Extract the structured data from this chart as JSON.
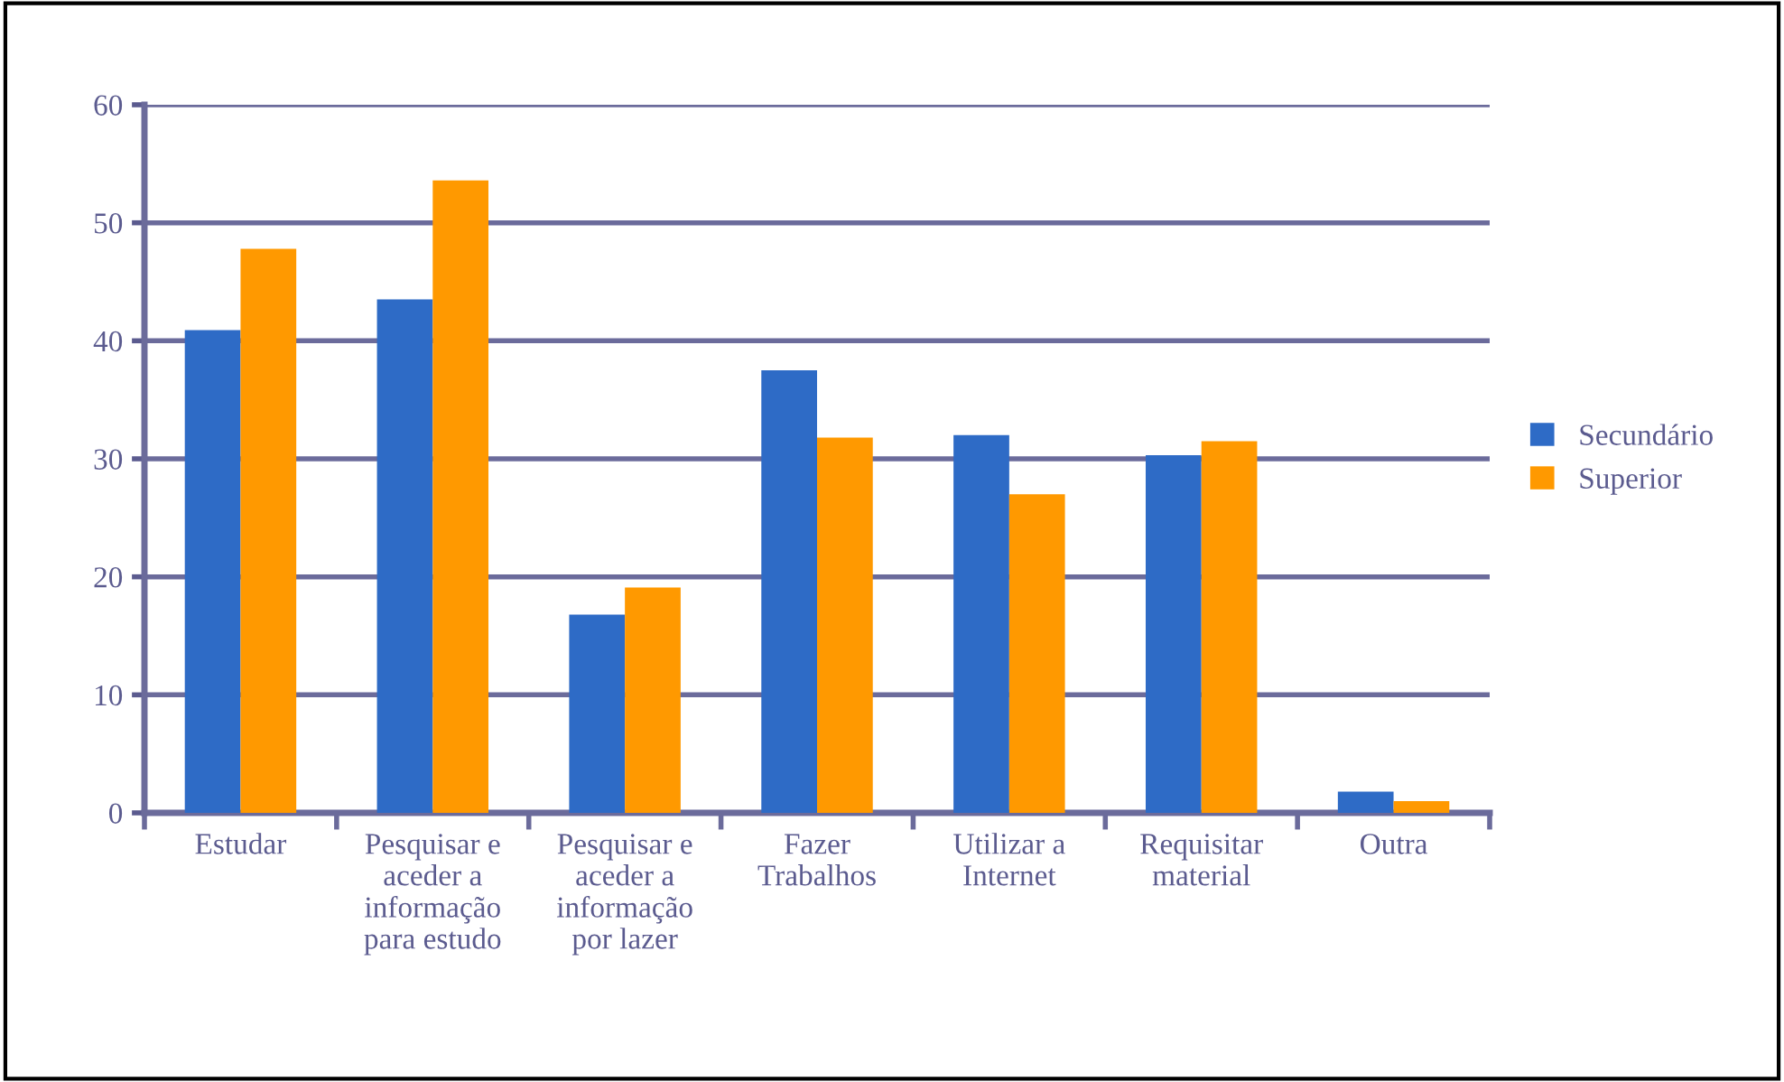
{
  "chart_data": {
    "type": "bar",
    "categories": [
      "Estudar",
      "Pesquisar e\naceder a\ninformação\npara estudo",
      "Pesquisar e\naceder a\ninformação\npor lazer",
      "Fazer\nTrabalhos",
      "Utilizar a\nInternet",
      "Requisitar\nmaterial",
      "Outra"
    ],
    "series": [
      {
        "name": "Secundário",
        "color": "#2e6bc6",
        "values": [
          40.9,
          43.5,
          16.8,
          37.5,
          32.0,
          30.3,
          1.8
        ]
      },
      {
        "name": "Superior",
        "color": "#ff9900",
        "values": [
          47.8,
          53.6,
          19.1,
          31.8,
          27.0,
          31.5,
          1.0
        ]
      }
    ],
    "ylim": [
      0,
      60
    ],
    "yticks": [
      0,
      10,
      20,
      30,
      40,
      50,
      60
    ],
    "grid": "y",
    "legend": "right"
  }
}
